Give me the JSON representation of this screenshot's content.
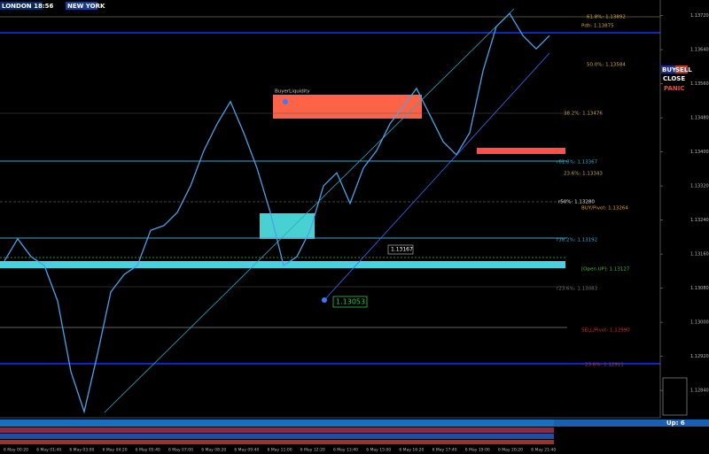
{
  "header": {
    "session_left": "LONDON 18:56",
    "session_right": "NEW YORK"
  },
  "chart": {
    "ylim": [
      1.1278,
      1.1374
    ],
    "ticks": [
      {
        "value": 1.1372,
        "label": "1.13720"
      },
      {
        "value": 1.1364,
        "label": "1.13640"
      },
      {
        "value": 1.1356,
        "label": "1.13560"
      },
      {
        "value": 1.1348,
        "label": "1.13480"
      },
      {
        "value": 1.134,
        "label": "1.13400"
      },
      {
        "value": 1.1332,
        "label": "1.13320"
      },
      {
        "value": 1.1324,
        "label": "1.13240"
      },
      {
        "value": 1.1316,
        "label": "1.13160"
      },
      {
        "value": 1.1308,
        "label": "1.13080"
      },
      {
        "value": 1.13,
        "label": "1.13000"
      },
      {
        "value": 1.1292,
        "label": "1.12920"
      },
      {
        "value": 1.1284,
        "label": "1.12840"
      }
    ],
    "prices": [
      1.13144,
      1.13196,
      1.13154,
      1.13133,
      1.1305,
      1.12884,
      1.1279,
      1.12925,
      1.13071,
      1.13112,
      1.13133,
      1.13216,
      1.13227,
      1.13258,
      1.1332,
      1.13403,
      1.13466,
      1.13518,
      1.13445,
      1.13362,
      1.13258,
      1.13133,
      1.13154,
      1.13216,
      1.1332,
      1.13351,
      1.13279,
      1.13362,
      1.13403,
      1.13466,
      1.13507,
      1.13549,
      1.13487,
      1.13424,
      1.13393,
      1.13445,
      1.1359,
      1.13694,
      1.13725,
      1.13673,
      1.13642,
      1.13673
    ],
    "times": [
      "6 May 00:20",
      "6 May 01:40",
      "6 May 03:00",
      "6 May 04:20",
      "6 May 05:40",
      "6 May 07:00",
      "6 May 08:20",
      "6 May 09:40",
      "6 May 11:00",
      "6 May 12:20",
      "6 May 13:40",
      "6 May 15:00",
      "6 May 16:20",
      "6 May 17:40",
      "6 May 19:00",
      "6 May 20:20",
      "6 May 21:40"
    ],
    "levels": [
      "61.8%: 1.13892",
      "Pdh: 1.13875",
      "50.0%: 1.13584",
      "38.2%: 1.13476",
      "r61.8%: 1.13367",
      "23.6%: 1.13343",
      "r50%: 1.13280",
      "BUY/Pivot: 1.13264",
      "r38.2%: 1.13192",
      "[Open UP]: 1.13127",
      "r23.6%: 1.13083",
      "SELL/Pivot: 1.12990",
      "23.6%: 1.12911"
    ],
    "callouts": [
      "1.13167",
      "1.13053"
    ],
    "zone_label": "BuyerLiquidity"
  },
  "panel": {
    "buttons": [
      "BUY",
      "SELL",
      "CLOSE",
      "PANIC"
    ],
    "status": "Up: 6"
  }
}
